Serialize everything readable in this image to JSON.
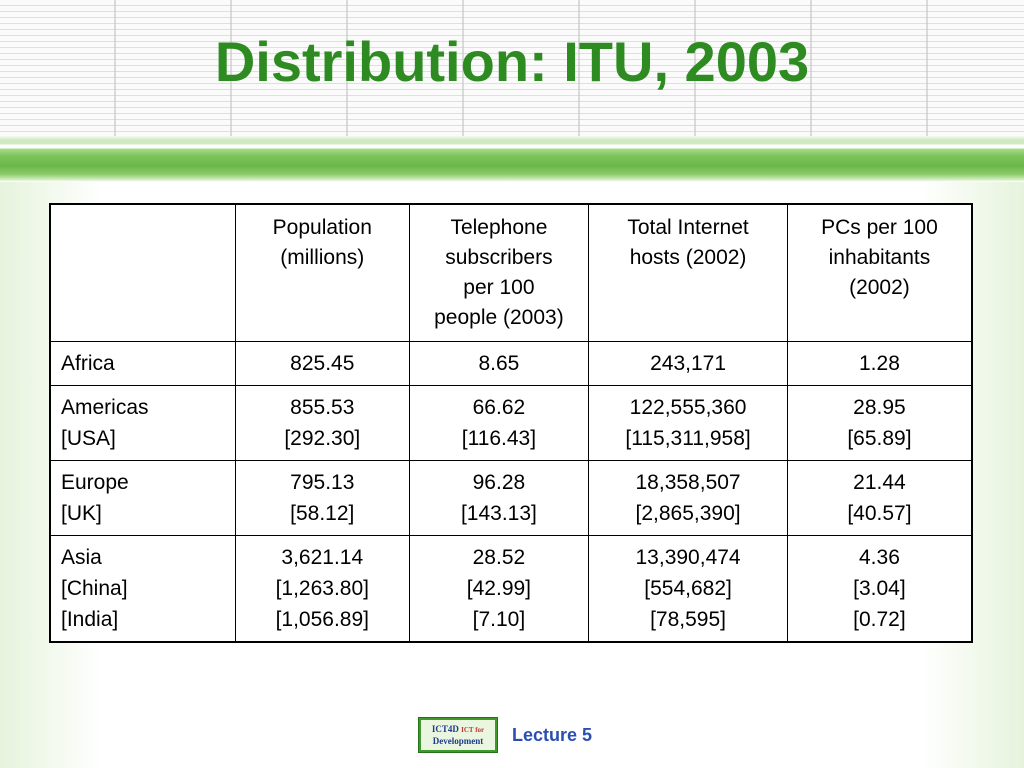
{
  "title": "Distribution: ITU, 2003",
  "table": {
    "headers": [
      "",
      [
        "Population",
        "(millions)"
      ],
      [
        "Telephone",
        "subscribers",
        "per 100",
        "people (2003)"
      ],
      [
        "Total Internet",
        "hosts (2002)"
      ],
      [
        "PCs per 100",
        "inhabitants",
        "(2002)"
      ]
    ],
    "rows": [
      {
        "region": [
          "Africa"
        ],
        "population": [
          "825.45"
        ],
        "telephone": [
          "8.65"
        ],
        "hosts": [
          "243,171"
        ],
        "pcs": [
          "1.28"
        ]
      },
      {
        "region": [
          "Americas",
          "[USA]"
        ],
        "population": [
          "855.53",
          "[292.30]"
        ],
        "telephone": [
          "66.62",
          "[116.43]"
        ],
        "hosts": [
          "122,555,360",
          "[115,311,958]"
        ],
        "pcs": [
          "28.95",
          "[65.89]"
        ]
      },
      {
        "region": [
          "Europe",
          "[UK]"
        ],
        "population": [
          "795.13",
          "[58.12]"
        ],
        "telephone": [
          "96.28",
          "[143.13]"
        ],
        "hosts": [
          "18,358,507",
          "[2,865,390]"
        ],
        "pcs": [
          "21.44",
          "[40.57]"
        ]
      },
      {
        "region": [
          "Asia",
          "[China]",
          "[India]"
        ],
        "population": [
          "3,621.14",
          "[1,263.80]",
          "[1,056.89]"
        ],
        "telephone": [
          "28.52",
          "[42.99]",
          "[7.10]"
        ],
        "hosts": [
          "13,390,474",
          "[554,682]",
          "[78,595]"
        ],
        "pcs": [
          "4.36",
          "[3.04]",
          "[0.72]"
        ]
      }
    ]
  },
  "footer": {
    "logo_text_main": "ICT4D",
    "logo_text_small": "ICT for",
    "logo_text_bottom": "Development",
    "lecture": "Lecture 5"
  },
  "colors": {
    "title": "#2e8b22",
    "band": "#6ab848",
    "lecture": "#2a4fb0"
  }
}
